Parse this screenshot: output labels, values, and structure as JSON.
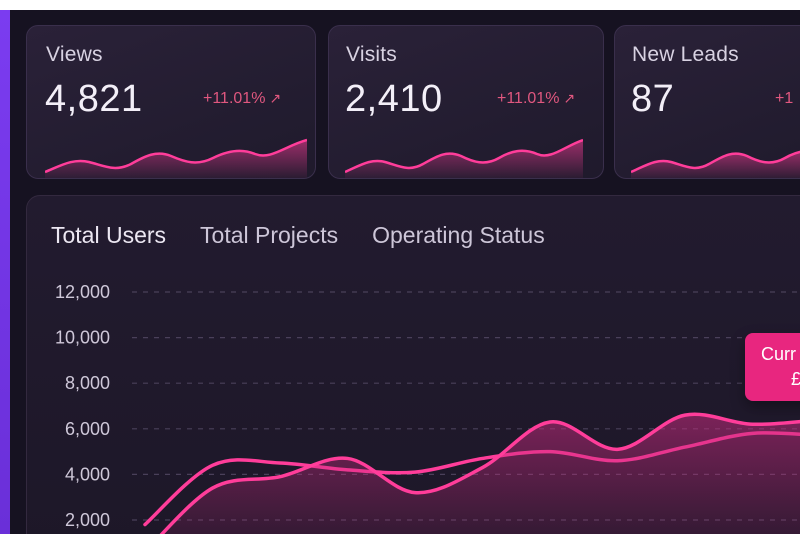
{
  "stats": [
    {
      "label": "Views",
      "value": "4,821",
      "change": "+11.01%",
      "change_icon": "arrow-up-right-icon"
    },
    {
      "label": "Visits",
      "value": "2,410",
      "change": "+11.01%",
      "change_icon": "arrow-up-right-icon"
    },
    {
      "label": "New Leads",
      "value": "87",
      "change": "+1",
      "change_icon": "arrow-up-right-icon"
    }
  ],
  "tabs": [
    {
      "label": "Total Users",
      "active": true
    },
    {
      "label": "Total Projects",
      "active": false
    },
    {
      "label": "Operating Status",
      "active": false
    }
  ],
  "tooltip": {
    "label": "Curr",
    "value": "£"
  },
  "colors": {
    "accent": "#e8267f",
    "line": "#ff3d9a",
    "sidebar": "#6a2fd8",
    "background": "#161221"
  },
  "chart_data": {
    "type": "line",
    "y_ticks": [
      12000,
      10000,
      8000,
      6000,
      4000,
      2000
    ],
    "y_tick_labels": [
      "12,000",
      "10,000",
      "8,000",
      "6,000",
      "4,000",
      "2,000"
    ],
    "ylim": [
      0,
      12000
    ],
    "grid": true,
    "series": [
      {
        "values": [
          1800,
          4400,
          4500,
          4200,
          4100,
          4700,
          5000,
          4600,
          5200,
          5800,
          5700
        ]
      },
      {
        "values": [
          600,
          3400,
          3900,
          4700,
          3200,
          4300,
          6300,
          5100,
          6600,
          6200,
          6400
        ]
      }
    ]
  }
}
